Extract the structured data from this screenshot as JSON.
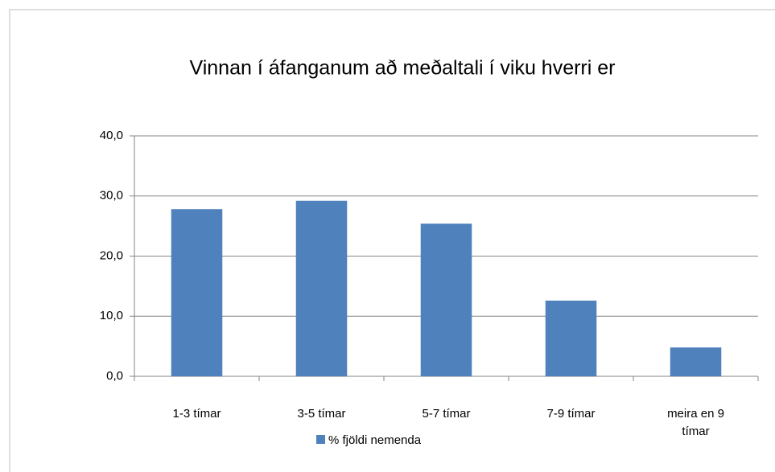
{
  "chart_data": {
    "type": "bar",
    "title": "Vinnan í áfanganum að meðaltali í viku hverri er",
    "categories": [
      "1-3 tímar",
      "3-5 tímar",
      "5-7 tímar",
      "7-9 tímar",
      "meira en 9 tímar"
    ],
    "series": [
      {
        "name": "% fjöldi nemenda",
        "color": "#4f81bd",
        "values": [
          27.8,
          29.2,
          25.4,
          12.6,
          4.8
        ]
      }
    ],
    "ylim": [
      0,
      40
    ],
    "yticks": [
      {
        "value": 0,
        "label": "0,0"
      },
      {
        "value": 10,
        "label": "10,0"
      },
      {
        "value": 20,
        "label": "20,0"
      },
      {
        "value": 30,
        "label": "30,0"
      },
      {
        "value": 40,
        "label": "40,0"
      }
    ],
    "grid": true,
    "legend": "bottom"
  }
}
